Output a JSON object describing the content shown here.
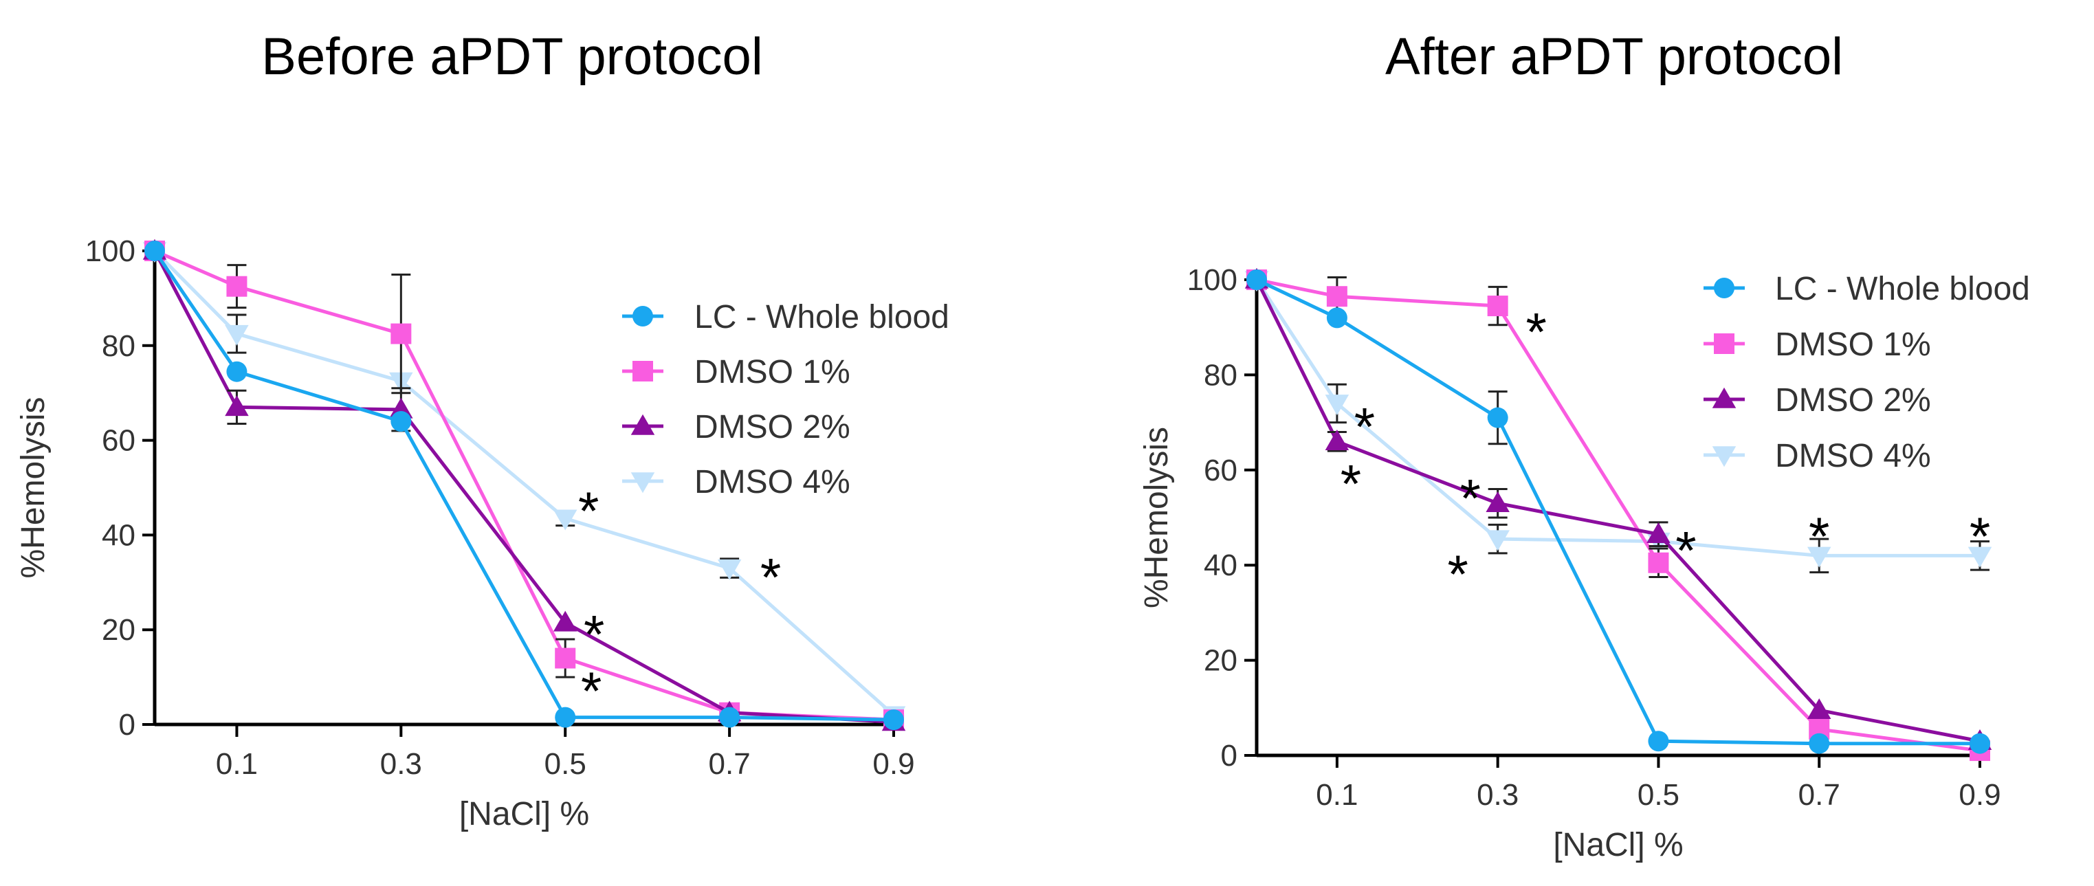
{
  "chart_data": [
    {
      "type": "line",
      "title": "Before aPDT protocol",
      "xlabel": "[NaCl] %",
      "ylabel": "%Hemolysis",
      "x": [
        0,
        0.1,
        0.3,
        0.5,
        0.7,
        0.9
      ],
      "xtick_labels": [
        "0.1",
        "0.3",
        "0.5",
        "0.7",
        "0.9"
      ],
      "xlim": [
        0,
        0.9
      ],
      "yticks": [
        "0",
        "20",
        "40",
        "60",
        "80",
        "100"
      ],
      "ylim": [
        0,
        100
      ],
      "legend_position": "top-right",
      "series": [
        {
          "name": "LC - Whole blood",
          "marker": "circle",
          "color": "#1aa7f0",
          "values": [
            100,
            74.5,
            64,
            1.5,
            1.5,
            1
          ],
          "errors": [
            0,
            0,
            0,
            0,
            0,
            0
          ]
        },
        {
          "name": "DMSO 1%",
          "marker": "square",
          "color": "#f95ce0",
          "values": [
            100,
            92.5,
            82.5,
            14,
            2.5,
            1
          ],
          "errors": [
            0,
            4.5,
            12.5,
            4,
            1.5,
            0
          ]
        },
        {
          "name": "DMSO 2%",
          "marker": "triangle-up",
          "color": "#8b0d9e",
          "values": [
            100,
            67,
            66.5,
            21.5,
            2.5,
            0.5
          ],
          "errors": [
            0,
            3.5,
            4.5,
            0,
            0,
            0
          ]
        },
        {
          "name": "DMSO 4%",
          "marker": "triangle-down",
          "color": "#c2e2fb",
          "values": [
            100,
            82.5,
            72.5,
            43.5,
            33,
            2
          ],
          "errors": [
            0,
            4,
            0,
            1.5,
            2,
            0
          ]
        }
      ],
      "annotations": [
        {
          "text": "*",
          "x": 0.5,
          "y": 47
        },
        {
          "text": "*",
          "x": 0.7,
          "y": 33
        },
        {
          "text": "*",
          "x": 0.5,
          "y": 21
        },
        {
          "text": "*",
          "x": 0.5,
          "y": 9
        }
      ]
    },
    {
      "type": "line",
      "title": "After aPDT protocol",
      "xlabel": "[NaCl] %",
      "ylabel": "%Hemolysis",
      "x": [
        0,
        0.1,
        0.3,
        0.5,
        0.7,
        0.9
      ],
      "xtick_labels": [
        "0.1",
        "0.3",
        "0.5",
        "0.7",
        "0.9"
      ],
      "xlim": [
        0,
        0.9
      ],
      "yticks": [
        "0",
        "20",
        "40",
        "60",
        "80",
        "100"
      ],
      "ylim": [
        0,
        100
      ],
      "legend_position": "top-right",
      "series": [
        {
          "name": "LC - Whole blood",
          "marker": "circle",
          "color": "#1aa7f0",
          "values": [
            100,
            92,
            71,
            3,
            2.5,
            2.5
          ],
          "errors": [
            0,
            0,
            5.5,
            0,
            0,
            0
          ]
        },
        {
          "name": "DMSO 1%",
          "marker": "square",
          "color": "#f95ce0",
          "values": [
            100,
            96.5,
            94.5,
            40.5,
            5.5,
            1
          ],
          "errors": [
            0,
            4,
            4,
            3,
            0,
            0
          ]
        },
        {
          "name": "DMSO 2%",
          "marker": "triangle-up",
          "color": "#8b0d9e",
          "values": [
            100,
            66,
            53,
            46.5,
            9.5,
            3
          ],
          "errors": [
            0,
            2,
            3,
            2.5,
            0,
            0
          ]
        },
        {
          "name": "DMSO 4%",
          "marker": "triangle-down",
          "color": "#c2e2fb",
          "values": [
            100,
            74,
            45.5,
            45,
            42,
            42
          ],
          "errors": [
            0,
            4,
            3,
            0,
            3.5,
            3
          ]
        }
      ],
      "annotations": [
        {
          "text": "*",
          "x": 0.3,
          "y": 91
        },
        {
          "text": "*",
          "x": 0.1,
          "y": 71
        },
        {
          "text": "*",
          "x": 0.1,
          "y": 59
        },
        {
          "text": "*",
          "x": 0.3,
          "y": 56
        },
        {
          "text": "*",
          "x": 0.3,
          "y": 40
        },
        {
          "text": "*",
          "x": 0.5,
          "y": 45
        },
        {
          "text": "*",
          "x": 0.7,
          "y": 48
        },
        {
          "text": "*",
          "x": 0.9,
          "y": 48
        }
      ]
    }
  ]
}
